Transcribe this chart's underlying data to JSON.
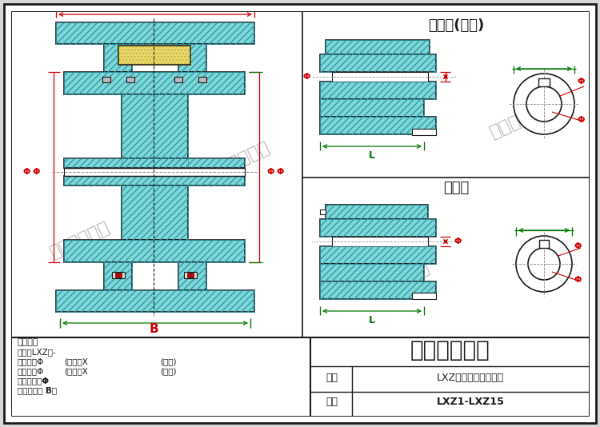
{
  "bg_color": "#d8d8d8",
  "panel_bg": "#ffffff",
  "cyan_fill": "#7fd8d8",
  "yellow_fill": "#e8d870",
  "red_dim": "#cc0000",
  "green_dim": "#007700",
  "dark": "#1a1a1a",
  "title_company": "泊头友谊机械",
  "label_name": "名称",
  "label_apply": "适用",
  "name_value": "LXZ型弹性柱销联轴器",
  "apply_value": "LXZ1-LXZ15",
  "text_label": "文字标注",
  "model_line": "型号：LXZ型-",
  "label_active": "主动端(轮端)",
  "label_passive": "从动端",
  "dim_B": "B",
  "dim_L": "L",
  "dim_phi": "Φ"
}
